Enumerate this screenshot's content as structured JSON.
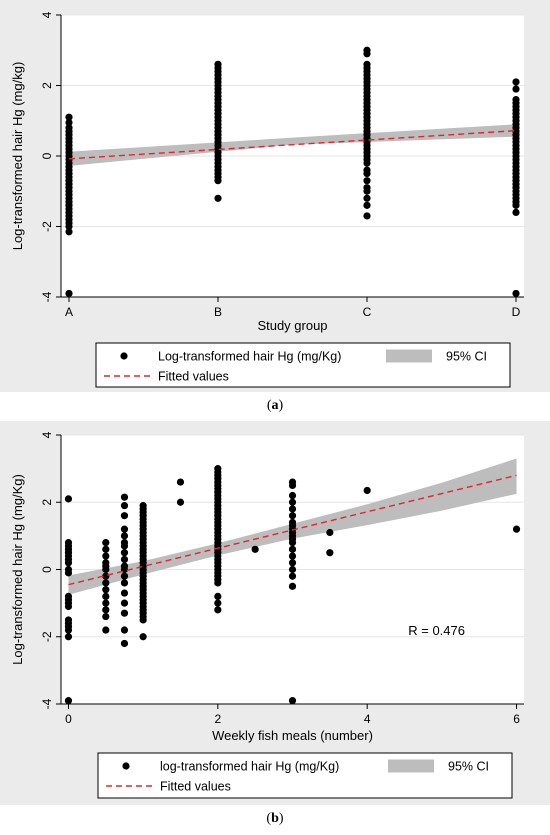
{
  "chart_data": [
    {
      "type": "scatter",
      "panel": "a",
      "xlabel": "Study group",
      "ylabel": "Log-transformed hair Hg (mg/kg)",
      "categories": [
        "A",
        "B",
        "C",
        "D"
      ],
      "ylim": [
        -4,
        4
      ],
      "yticks": [
        "-4",
        "-2",
        "0",
        "2",
        "4"
      ],
      "grid": true,
      "legend_placement": "bottom",
      "colors": {
        "points": "#000000",
        "fit": "#e8232a",
        "ci": "#bdbdbd",
        "plot_bg": "#ffffff",
        "outer_bg": "#ebebeb"
      },
      "series": [
        {
          "name": "Log-transformed hair Hg (mg/Kg)",
          "role": "points",
          "groups": [
            {
              "category": "A",
              "values": [
                1.1,
                0.95,
                0.8,
                0.7,
                0.6,
                0.5,
                0.4,
                0.3,
                0.2,
                0.1,
                0.0,
                -0.1,
                -0.2,
                -0.3,
                -0.4,
                -0.5,
                -0.6,
                -0.7,
                -0.8,
                -0.9,
                -1.0,
                -1.1,
                -1.2,
                -1.3,
                -1.4,
                -1.5,
                -1.6,
                -1.7,
                -1.8,
                -1.9,
                -2.0,
                -2.15,
                -3.9
              ]
            },
            {
              "category": "B",
              "values": [
                2.6,
                2.5,
                2.4,
                2.3,
                2.2,
                2.1,
                2.0,
                1.9,
                1.8,
                1.7,
                1.6,
                1.5,
                1.4,
                1.3,
                1.2,
                1.1,
                1.0,
                0.9,
                0.8,
                0.7,
                0.6,
                0.5,
                0.4,
                0.3,
                0.2,
                0.1,
                0.0,
                -0.1,
                -0.2,
                -0.3,
                -0.4,
                -0.5,
                -0.6,
                -0.7,
                -1.2
              ]
            },
            {
              "category": "C",
              "values": [
                3.0,
                2.9,
                2.6,
                2.5,
                2.4,
                2.3,
                2.2,
                2.1,
                2.0,
                1.9,
                1.8,
                1.7,
                1.6,
                1.5,
                1.4,
                1.3,
                1.2,
                1.1,
                1.0,
                0.9,
                0.8,
                0.7,
                0.6,
                0.5,
                0.4,
                0.3,
                0.2,
                0.1,
                0.0,
                -0.1,
                -0.2,
                -0.4,
                -0.5,
                -0.7,
                -0.9,
                -1.0,
                -1.2,
                -1.4,
                -1.7
              ]
            },
            {
              "category": "D",
              "values": [
                2.1,
                1.9,
                1.6,
                1.5,
                1.4,
                1.3,
                1.2,
                1.1,
                1.0,
                0.9,
                0.8,
                0.7,
                0.6,
                0.5,
                0.4,
                0.3,
                0.2,
                0.1,
                0.0,
                -0.1,
                -0.2,
                -0.3,
                -0.4,
                -0.5,
                -0.6,
                -0.7,
                -0.8,
                -0.9,
                -1.0,
                -1.1,
                -1.2,
                -1.3,
                -1.4,
                -1.6,
                -3.9
              ]
            }
          ]
        },
        {
          "name": "Fitted values",
          "role": "fit",
          "x": [
            1,
            4
          ],
          "y": [
            -0.08,
            0.72
          ]
        },
        {
          "name": "95% CI",
          "role": "ci",
          "x": [
            1,
            2.5,
            4
          ],
          "lower": [
            -0.28,
            0.32,
            0.55
          ],
          "upper": [
            0.12,
            0.52,
            0.9
          ]
        }
      ],
      "legend": [
        {
          "label": "Log-transformed hair Hg (mg/Kg)",
          "symbol": "dot"
        },
        {
          "label": "95% CI",
          "symbol": "band"
        },
        {
          "label": "Fitted values",
          "symbol": "dash"
        }
      ]
    },
    {
      "type": "scatter",
      "panel": "b",
      "xlabel": "Weekly fish meals (number)",
      "ylabel": "Log-transformed hair Hg (mg/Kg)",
      "xlim": [
        -0.1,
        6.1
      ],
      "xticks": [
        0,
        2,
        4,
        6
      ],
      "ylim": [
        -4,
        4
      ],
      "yticks": [
        "-4",
        "-2",
        "0",
        "2",
        "4"
      ],
      "grid": true,
      "legend_placement": "bottom",
      "annotation": "R = 0.476",
      "colors": {
        "points": "#000000",
        "fit": "#e8232a",
        "ci": "#bdbdbd",
        "plot_bg": "#ffffff",
        "outer_bg": "#ebebeb"
      },
      "series": [
        {
          "name": "log-transformed hair Hg (mg/Kg)",
          "role": "points",
          "groups": [
            {
              "x": 0,
              "values": [
                2.1,
                0.8,
                0.7,
                0.6,
                0.5,
                0.4,
                0.3,
                0.2,
                0.0,
                -0.1,
                -0.8,
                -0.9,
                -1.0,
                -1.1,
                -1.5,
                -1.6,
                -1.7,
                -1.8,
                -2.0,
                -3.9
              ]
            },
            {
              "x": 0.5,
              "values": [
                0.8,
                0.6,
                0.4,
                0.2,
                0.1,
                0.0,
                -0.2,
                -0.4,
                -0.6,
                -0.8,
                -1.0,
                -1.2,
                -1.4,
                -1.8
              ]
            },
            {
              "x": 0.75,
              "values": [
                2.15,
                1.9,
                1.6,
                1.2,
                1.0,
                0.8,
                0.7,
                0.5,
                0.3,
                0.1,
                0.0,
                -0.2,
                -0.4,
                -0.7,
                -1.0,
                -1.3,
                -1.8,
                -2.2
              ]
            },
            {
              "x": 1,
              "values": [
                1.9,
                1.8,
                1.7,
                1.6,
                1.5,
                1.4,
                1.3,
                1.2,
                1.1,
                1.0,
                0.9,
                0.8,
                0.7,
                0.6,
                0.5,
                0.4,
                0.3,
                0.2,
                0.1,
                0.0,
                -0.1,
                -0.2,
                -0.3,
                -0.4,
                -0.5,
                -0.6,
                -0.7,
                -0.8,
                -0.9,
                -1.0,
                -1.1,
                -1.2,
                -1.3,
                -1.4,
                -1.5,
                -2.0
              ]
            },
            {
              "x": 1.5,
              "values": [
                2.6,
                2.0
              ]
            },
            {
              "x": 2,
              "values": [
                3.0,
                2.9,
                2.8,
                2.7,
                2.6,
                2.5,
                2.4,
                2.3,
                2.2,
                2.1,
                2.0,
                1.9,
                1.8,
                1.7,
                1.6,
                1.5,
                1.4,
                1.3,
                1.2,
                1.1,
                1.0,
                0.9,
                0.8,
                0.7,
                0.6,
                0.5,
                0.4,
                0.3,
                0.2,
                0.1,
                0.0,
                -0.1,
                -0.2,
                -0.3,
                -0.4,
                -0.8,
                -1.0,
                -1.2
              ]
            },
            {
              "x": 2.5,
              "values": [
                0.6
              ]
            },
            {
              "x": 3,
              "values": [
                2.6,
                2.5,
                2.2,
                2.0,
                1.8,
                1.6,
                1.4,
                1.3,
                1.2,
                1.1,
                1.0,
                0.9,
                0.8,
                0.6,
                0.4,
                0.2,
                0.0,
                -0.2,
                -0.5,
                -3.9
              ]
            },
            {
              "x": 3.5,
              "values": [
                1.1,
                0.5
              ]
            },
            {
              "x": 4,
              "values": [
                2.35
              ]
            },
            {
              "x": 6,
              "values": [
                1.2
              ]
            }
          ]
        },
        {
          "name": "Fitted values",
          "role": "fit",
          "x": [
            0,
            6
          ],
          "y": [
            -0.45,
            2.8
          ]
        },
        {
          "name": "95% CI",
          "role": "ci",
          "x": [
            0,
            1,
            2,
            3,
            4,
            5,
            6
          ],
          "lower": [
            -0.75,
            -0.15,
            0.42,
            0.92,
            1.32,
            1.75,
            2.25
          ],
          "upper": [
            -0.18,
            0.25,
            0.78,
            1.36,
            1.94,
            2.58,
            3.3
          ]
        }
      ],
      "legend": [
        {
          "label": "log-transformed hair Hg (mg/Kg)",
          "symbol": "dot"
        },
        {
          "label": "95% CI",
          "symbol": "band"
        },
        {
          "label": "Fitted values",
          "symbol": "dash"
        }
      ]
    }
  ],
  "captions": {
    "a_open": "(",
    "a_letter": "a",
    "a_close": ")",
    "b_open": "(",
    "b_letter": "b",
    "b_close": ")"
  }
}
